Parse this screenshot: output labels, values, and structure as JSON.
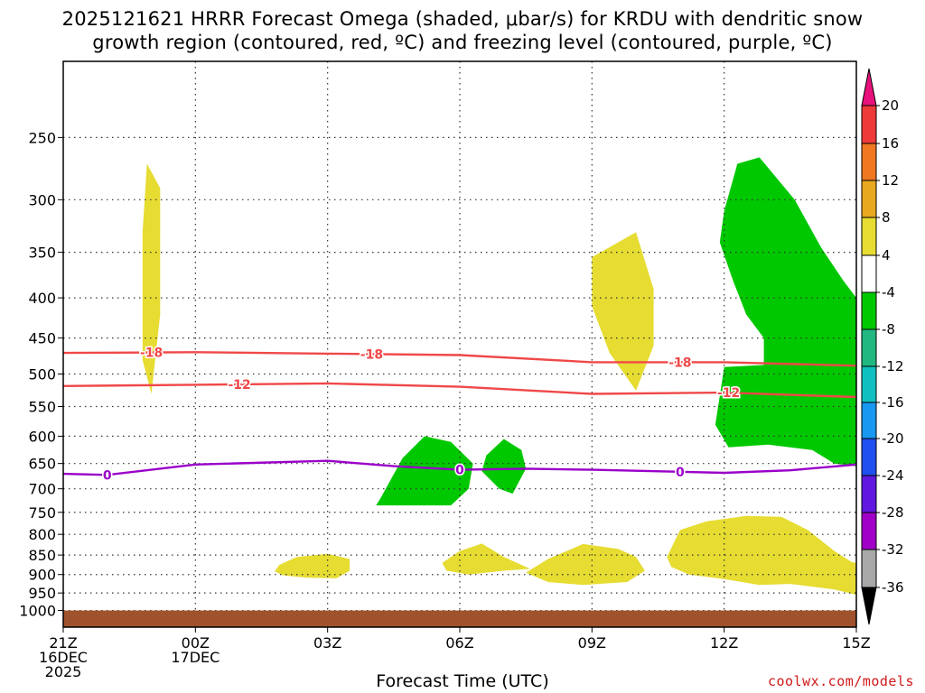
{
  "title": {
    "line1": "2025121621 HRRR Forecast Omega (shaded, μbar/s) for KRDU with dendritic snow",
    "line2": "growth region (contoured, red, ºC) and freezing level (contoured, purple, ºC)"
  },
  "chart_data": {
    "type": "time-height contour",
    "xlabel": "Forecast Time (UTC)",
    "ylabel": "",
    "x_range_hours": [
      0,
      18
    ],
    "y_log_pressure_range_hPa": [
      1050,
      200
    ],
    "x_ticks": [
      {
        "hour": 0,
        "lines": [
          "21Z",
          "16DEC",
          "2025"
        ]
      },
      {
        "hour": 3,
        "lines": [
          "00Z",
          "17DEC"
        ]
      },
      {
        "hour": 6,
        "lines": [
          "03Z"
        ]
      },
      {
        "hour": 9,
        "lines": [
          "06Z"
        ]
      },
      {
        "hour": 12,
        "lines": [
          "09Z"
        ]
      },
      {
        "hour": 15,
        "lines": [
          "12Z"
        ]
      },
      {
        "hour": 18,
        "lines": [
          "15Z"
        ]
      }
    ],
    "y_ticks": [
      1000,
      950,
      900,
      850,
      800,
      750,
      700,
      650,
      600,
      550,
      500,
      450,
      400,
      350,
      300,
      250
    ],
    "grid": true,
    "ground_band_hPa": [
      1000,
      1025
    ],
    "contours": [
      {
        "name": "-18",
        "color": "#f04848",
        "label": "-18",
        "points": [
          [
            0,
            470
          ],
          [
            3,
            469
          ],
          [
            6,
            471
          ],
          [
            9,
            473
          ],
          [
            12,
            483
          ],
          [
            15,
            483
          ],
          [
            18,
            488
          ]
        ],
        "label_hours": [
          2.0,
          7.0,
          14.0
        ]
      },
      {
        "name": "-12",
        "color": "#f04848",
        "label": "-12",
        "points": [
          [
            0,
            518
          ],
          [
            3,
            516
          ],
          [
            6,
            514
          ],
          [
            9,
            519
          ],
          [
            12,
            530
          ],
          [
            15,
            528
          ],
          [
            18,
            535
          ]
        ],
        "label_hours": [
          4.0,
          15.1
        ]
      },
      {
        "name": "0",
        "color": "#9a00c8",
        "label": "0",
        "points": [
          [
            0,
            670
          ],
          [
            1,
            672
          ],
          [
            3,
            652
          ],
          [
            6,
            645
          ],
          [
            7.5,
            655
          ],
          [
            9,
            662
          ],
          [
            10.5,
            660
          ],
          [
            12,
            662
          ],
          [
            15,
            668
          ],
          [
            16.5,
            663
          ],
          [
            18,
            652
          ]
        ],
        "label_hours": [
          1.0,
          9.0,
          14.0
        ]
      }
    ],
    "shaded_regions": [
      {
        "category": "4 to 8",
        "color": "#e6dc32",
        "points": [
          [
            1.9,
            270
          ],
          [
            2.2,
            290
          ],
          [
            2.2,
            420
          ],
          [
            2.0,
            530
          ],
          [
            1.8,
            480
          ],
          [
            1.8,
            330
          ]
        ]
      },
      {
        "category": "4 to 8",
        "color": "#e6dc32",
        "points": [
          [
            12.0,
            355
          ],
          [
            13.0,
            330
          ],
          [
            13.4,
            390
          ],
          [
            13.4,
            460
          ],
          [
            13.0,
            525
          ],
          [
            12.4,
            470
          ],
          [
            12.0,
            410
          ]
        ]
      },
      {
        "category": "-4 to -8",
        "color": "#00c800",
        "points": [
          [
            15.3,
            270
          ],
          [
            15.8,
            265
          ],
          [
            16.6,
            300
          ],
          [
            17.2,
            345
          ],
          [
            17.7,
            380
          ],
          [
            18.0,
            400
          ],
          [
            18.0,
            655
          ],
          [
            17.5,
            650
          ],
          [
            17.0,
            625
          ],
          [
            16.0,
            615
          ],
          [
            15.1,
            620
          ],
          [
            14.8,
            580
          ],
          [
            15.0,
            490
          ],
          [
            15.9,
            487
          ],
          [
            15.9,
            450
          ],
          [
            15.5,
            420
          ],
          [
            15.2,
            380
          ],
          [
            14.9,
            340
          ],
          [
            15.0,
            310
          ]
        ]
      },
      {
        "category": "-4 to -8",
        "color": "#00c800",
        "points": [
          [
            8.2,
            600
          ],
          [
            8.8,
            610
          ],
          [
            9.3,
            650
          ],
          [
            9.2,
            700
          ],
          [
            8.8,
            735
          ],
          [
            8.0,
            735
          ],
          [
            7.1,
            735
          ],
          [
            7.2,
            720
          ],
          [
            7.7,
            640
          ]
        ]
      },
      {
        "category": "-4 to -8",
        "color": "#00c800",
        "points": [
          [
            10.0,
            605
          ],
          [
            10.4,
            625
          ],
          [
            10.5,
            660
          ],
          [
            10.2,
            710
          ],
          [
            9.9,
            700
          ],
          [
            9.5,
            665
          ],
          [
            9.6,
            635
          ]
        ]
      },
      {
        "category": "4 to 8",
        "color": "#e6dc32",
        "points": [
          [
            4.9,
            875
          ],
          [
            5.3,
            855
          ],
          [
            6.0,
            847
          ],
          [
            6.5,
            860
          ],
          [
            6.5,
            890
          ],
          [
            6.2,
            910
          ],
          [
            5.5,
            908
          ],
          [
            5.0,
            902
          ],
          [
            4.8,
            892
          ]
        ]
      },
      {
        "category": "4 to 8",
        "color": "#e6dc32",
        "points": [
          [
            8.6,
            870
          ],
          [
            9.0,
            840
          ],
          [
            9.5,
            822
          ],
          [
            10.0,
            855
          ],
          [
            10.6,
            885
          ],
          [
            10.0,
            890
          ],
          [
            9.2,
            900
          ],
          [
            8.7,
            890
          ]
        ]
      },
      {
        "category": "4 to 8",
        "color": "#e6dc32",
        "points": [
          [
            11.0,
            860
          ],
          [
            11.8,
            823
          ],
          [
            12.6,
            835
          ],
          [
            13.0,
            855
          ],
          [
            13.2,
            890
          ],
          [
            12.8,
            920
          ],
          [
            11.8,
            928
          ],
          [
            11.0,
            920
          ],
          [
            10.5,
            895
          ]
        ]
      },
      {
        "category": "4 to 8",
        "color": "#e6dc32",
        "points": [
          [
            14.0,
            790
          ],
          [
            14.6,
            770
          ],
          [
            15.5,
            758
          ],
          [
            16.3,
            760
          ],
          [
            16.9,
            790
          ],
          [
            17.5,
            840
          ],
          [
            17.9,
            868
          ],
          [
            18.0,
            870
          ],
          [
            18.0,
            955
          ],
          [
            17.5,
            940
          ],
          [
            16.5,
            925
          ],
          [
            15.8,
            928
          ],
          [
            15.0,
            912
          ],
          [
            14.2,
            900
          ],
          [
            13.8,
            880
          ],
          [
            13.7,
            855
          ]
        ]
      }
    ],
    "colorbar": {
      "label_levels": [
        "20",
        "16",
        "12",
        "8",
        "4",
        "-4",
        "-8",
        "-12",
        "-16",
        "-20",
        "-24",
        "-28",
        "-32",
        "-36"
      ],
      "segment_colors": [
        "#ef3a3a",
        "#f07820",
        "#e8a820",
        "#e6dc32",
        "#ffffff",
        "#00c800",
        "#20b880",
        "#10c0c0",
        "#1898f0",
        "#2050f0",
        "#6018e0",
        "#a000c8",
        "#a8a8a8"
      ],
      "top_arrow_color": "#e8107a",
      "bottom_arrow_color": "#000000"
    }
  },
  "credit": "coolwx.com/models"
}
